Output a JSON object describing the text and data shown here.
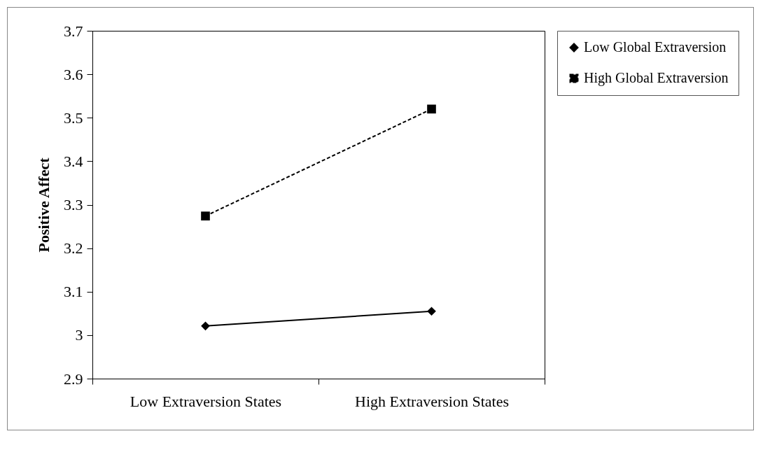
{
  "chart_data": {
    "type": "line",
    "ylabel": "Positive Affect",
    "categories": [
      "Low Extraversion States",
      "High Extraversion States"
    ],
    "series": [
      {
        "name": "Low Global Extraversion",
        "color": "#000000",
        "values": [
          3.021,
          3.055
        ],
        "marker": "diamond",
        "line_style": "solid"
      },
      {
        "name": "High Global Extraversion",
        "color": "#000000",
        "values": [
          3.274,
          3.52
        ],
        "marker": "square",
        "line_style": "dashed"
      }
    ],
    "ylim": [
      2.9,
      3.7
    ],
    "yticks": [
      2.9,
      3,
      3.1,
      3.2,
      3.3,
      3.4,
      3.5,
      3.6,
      3.7
    ],
    "grid": false,
    "legend": "right"
  }
}
